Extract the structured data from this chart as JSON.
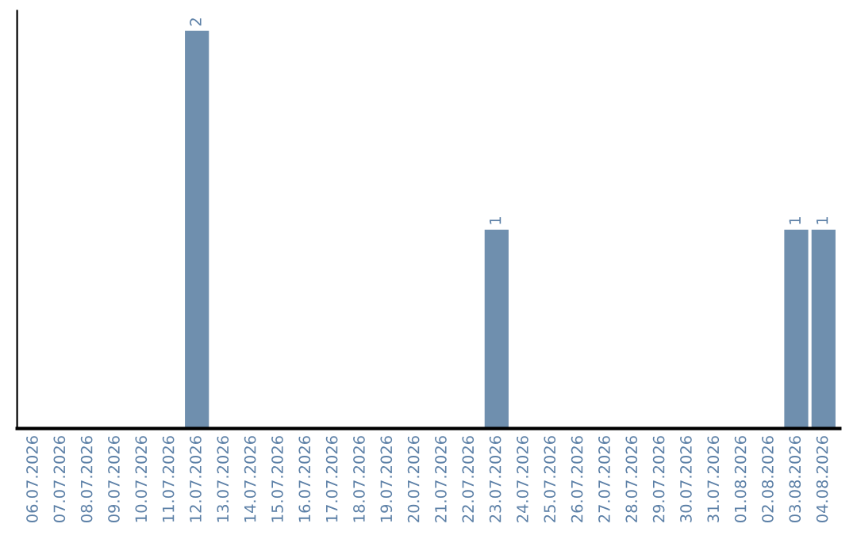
{
  "chart_data": {
    "type": "bar",
    "categories": [
      "06.07.2026",
      "07.07.2026",
      "08.07.2026",
      "09.07.2026",
      "10.07.2026",
      "11.07.2026",
      "12.07.2026",
      "13.07.2026",
      "14.07.2026",
      "15.07.2026",
      "16.07.2026",
      "17.07.2026",
      "18.07.2026",
      "19.07.2026",
      "20.07.2026",
      "21.07.2026",
      "22.07.2026",
      "23.07.2026",
      "24.07.2026",
      "25.07.2026",
      "26.07.2026",
      "27.07.2026",
      "28.07.2026",
      "29.07.2026",
      "30.07.2026",
      "31.07.2026",
      "01.08.2026",
      "02.08.2026",
      "03.08.2026",
      "04.08.2026"
    ],
    "values": [
      0,
      0,
      0,
      0,
      0,
      0,
      2,
      0,
      0,
      0,
      0,
      0,
      0,
      0,
      0,
      0,
      0,
      1,
      0,
      0,
      0,
      0,
      0,
      0,
      0,
      0,
      0,
      0,
      1,
      1
    ],
    "color": "#6f8fae",
    "value_labels": [
      null,
      null,
      null,
      null,
      null,
      null,
      "2",
      null,
      null,
      null,
      null,
      null,
      null,
      null,
      null,
      null,
      null,
      "1",
      null,
      null,
      null,
      null,
      null,
      null,
      null,
      null,
      null,
      null,
      "1",
      "1"
    ],
    "tick_labels": "x",
    "grid": false,
    "legend": false
  }
}
